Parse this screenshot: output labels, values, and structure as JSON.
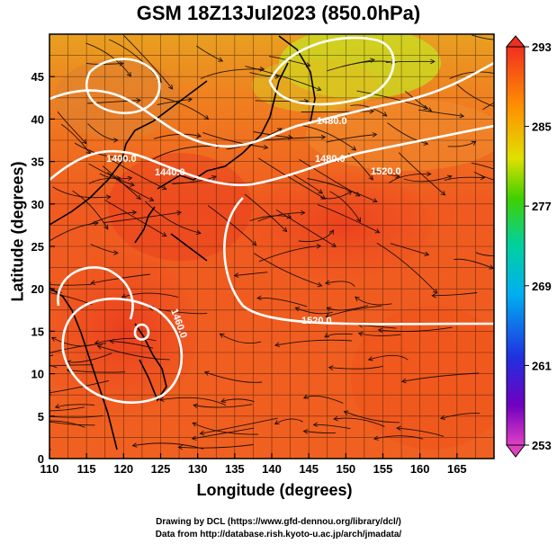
{
  "title": "GSM 18Z13Jul2023 (850.0hPa)",
  "xlabel": "Longitude (degrees)",
  "ylabel": "Latitude  (degrees)",
  "credit_line1": "Drawing by DCL (https://www.gfd-dennou.org/library/dcl/)",
  "credit_line2": "Data from http://database.rish.kyoto-u.ac.jp/arch/jmadata/",
  "map": {
    "xticks": [
      "110",
      "115",
      "120",
      "125",
      "130",
      "135",
      "140",
      "145",
      "150",
      "155",
      "160",
      "165"
    ],
    "yticks": [
      "0",
      "5",
      "10",
      "15",
      "20",
      "25",
      "30",
      "35",
      "40",
      "45"
    ],
    "xrange": [
      110,
      170
    ],
    "yrange": [
      0,
      50
    ],
    "contour_labels": [
      "1400.0",
      "1440.0",
      "1480.0",
      "1520.0",
      "1520.0",
      "1480.0",
      "1460.0"
    ],
    "colorbar_ticks": [
      "293",
      "285",
      "277",
      "269",
      "261",
      "253"
    ],
    "colorbar_range": [
      253,
      293
    ]
  }
}
